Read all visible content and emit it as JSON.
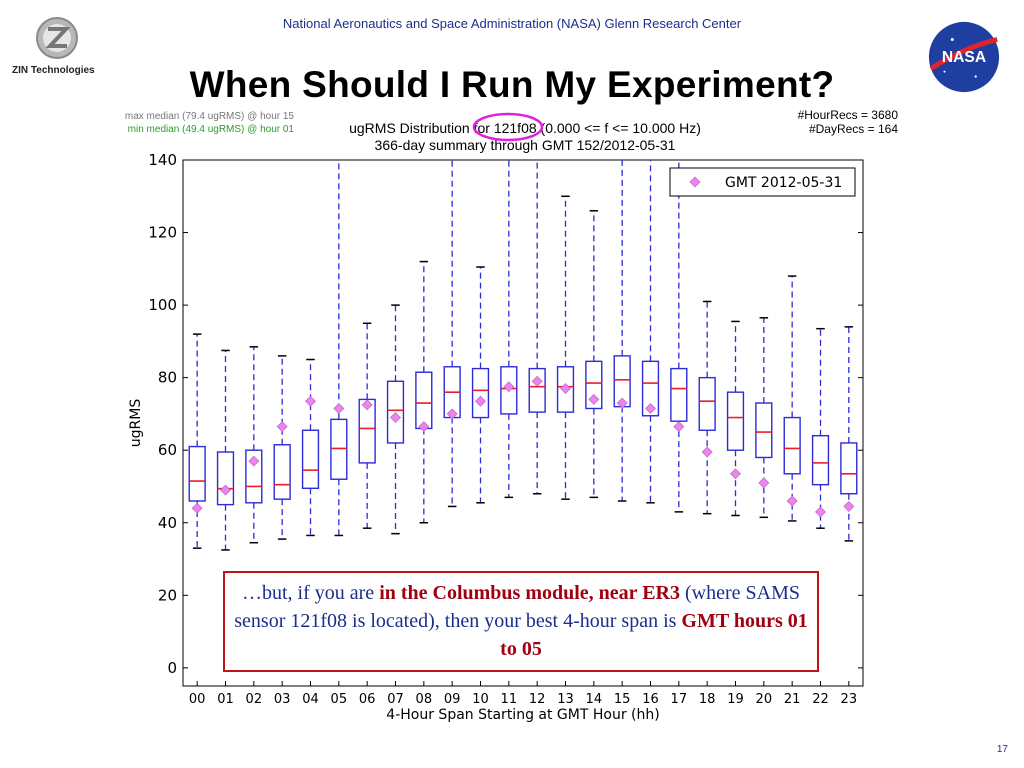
{
  "header": {
    "org_line": "National Aeronautics and Space Administration (NASA) Glenn Research Center",
    "title": "When Should I Run My Experiment?",
    "left_logo_text": "ZIN Technologies",
    "right_logo_text": "NASA"
  },
  "stats": {
    "max_median": "max median (79.4 ugRMS) @ hour 15",
    "min_median": "min median (49.4 ugRMS) @ hour 01",
    "hour_recs": "#HourRecs = 3680",
    "day_recs": "#DayRecs = 164"
  },
  "callout": {
    "part1": "…but, if you are ",
    "bold1": "in the Columbus module, near ER3",
    "part2": " (where SAMS sensor 121f08 is located), then your best 4-hour span is ",
    "bold2": "GMT hours 01 to 05"
  },
  "page_number": "17",
  "colors": {
    "box": "#2b2bd8",
    "median": "#e8202a",
    "marker": "#ee82ee",
    "highlight_ring": "#e020e0",
    "callout_border": "#c0121c"
  },
  "chart_data": {
    "type": "box",
    "title_line1": "ugRMS Distribution for 121f08 (0.000 <= f <= 10.000 Hz)",
    "title_line2": "366-day summary through GMT 152/2012-05-31",
    "xlabel": "4-Hour Span Starting at GMT Hour (hh)",
    "ylabel": "ugRMS",
    "ylim": [
      -5,
      140
    ],
    "yticks": [
      0,
      20,
      40,
      60,
      80,
      100,
      120,
      140
    ],
    "legend": {
      "label": "GMT 2012-05-31",
      "position": "top-right"
    },
    "grid": false,
    "categories": [
      "00",
      "01",
      "02",
      "03",
      "04",
      "05",
      "06",
      "07",
      "08",
      "09",
      "10",
      "11",
      "12",
      "13",
      "14",
      "15",
      "16",
      "17",
      "18",
      "19",
      "20",
      "21",
      "22",
      "23"
    ],
    "series": [
      {
        "name": "whisker_low",
        "values": [
          33,
          32.5,
          34.5,
          35.5,
          36.5,
          36.5,
          38.5,
          37,
          40,
          44.5,
          45.5,
          47,
          48,
          46.5,
          47,
          46,
          45.5,
          43,
          42.5,
          42,
          41.5,
          40.5,
          38.5,
          35
        ]
      },
      {
        "name": "q1",
        "values": [
          46,
          45,
          45.5,
          46.5,
          49.5,
          52,
          56.5,
          62,
          66,
          69,
          69,
          70,
          70.5,
          70.5,
          71.5,
          72,
          69.5,
          68,
          65.5,
          60,
          58,
          53.5,
          50.5,
          48
        ]
      },
      {
        "name": "median",
        "values": [
          51.5,
          49.4,
          50,
          50.5,
          54.5,
          60.5,
          66,
          71,
          73,
          76,
          76.5,
          77,
          77.5,
          77.5,
          78.5,
          79.4,
          78.5,
          77,
          73.5,
          69,
          65,
          60.5,
          56.5,
          53.5
        ]
      },
      {
        "name": "q3",
        "values": [
          61,
          59.5,
          60,
          61.5,
          65.5,
          68.5,
          74,
          79,
          81.5,
          83,
          82.5,
          83,
          82.5,
          83,
          84.5,
          86,
          84.5,
          82.5,
          80,
          76,
          73,
          69,
          64,
          62
        ]
      },
      {
        "name": "whisker_high",
        "values": [
          92,
          87.5,
          88.5,
          86,
          85,
          140,
          95,
          100,
          112,
          140,
          110.5,
          140,
          140,
          130,
          126,
          140,
          140,
          140,
          101,
          95.5,
          96.5,
          108,
          93.5,
          94
        ]
      },
      {
        "name": "GMT 2012-05-31",
        "values": [
          44,
          49,
          57,
          66.5,
          73.5,
          71.5,
          72.5,
          69,
          66.5,
          70,
          73.5,
          77.5,
          79,
          77,
          74,
          73,
          71.5,
          66.5,
          59.5,
          53.5,
          51,
          46,
          43,
          44.5
        ]
      }
    ]
  }
}
